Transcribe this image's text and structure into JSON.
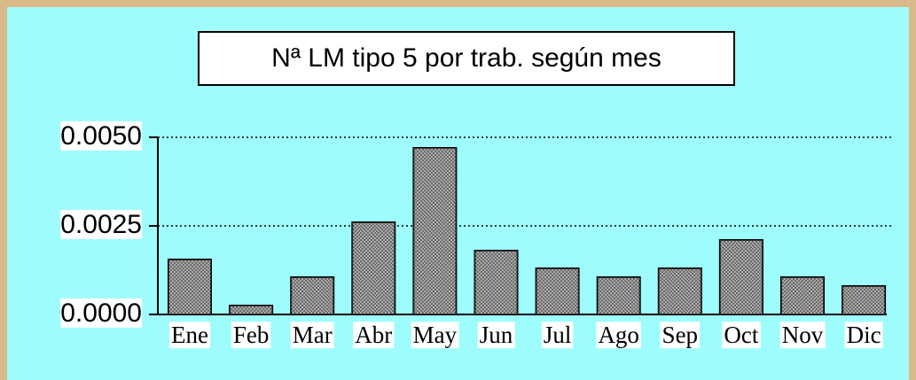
{
  "chart_data": {
    "type": "bar",
    "title": "Nª LM tipo 5 por trab. según mes",
    "categories": [
      "Ene",
      "Feb",
      "Mar",
      "Abr",
      "May",
      "Jun",
      "Jul",
      "Ago",
      "Sep",
      "Oct",
      "Nov",
      "Dic"
    ],
    "values": [
      0.00155,
      0.00025,
      0.00105,
      0.0026,
      0.0047,
      0.0018,
      0.0013,
      0.00105,
      0.0013,
      0.0021,
      0.00105,
      0.0008
    ],
    "color": "#8a8a8a",
    "ylim": [
      0,
      0.005
    ],
    "yticks": [
      {
        "value": 0,
        "label": "0.0000"
      },
      {
        "value": 0.0025,
        "label": "0.0025"
      },
      {
        "value": 0.005,
        "label": "0.0050"
      }
    ],
    "grid": true
  }
}
